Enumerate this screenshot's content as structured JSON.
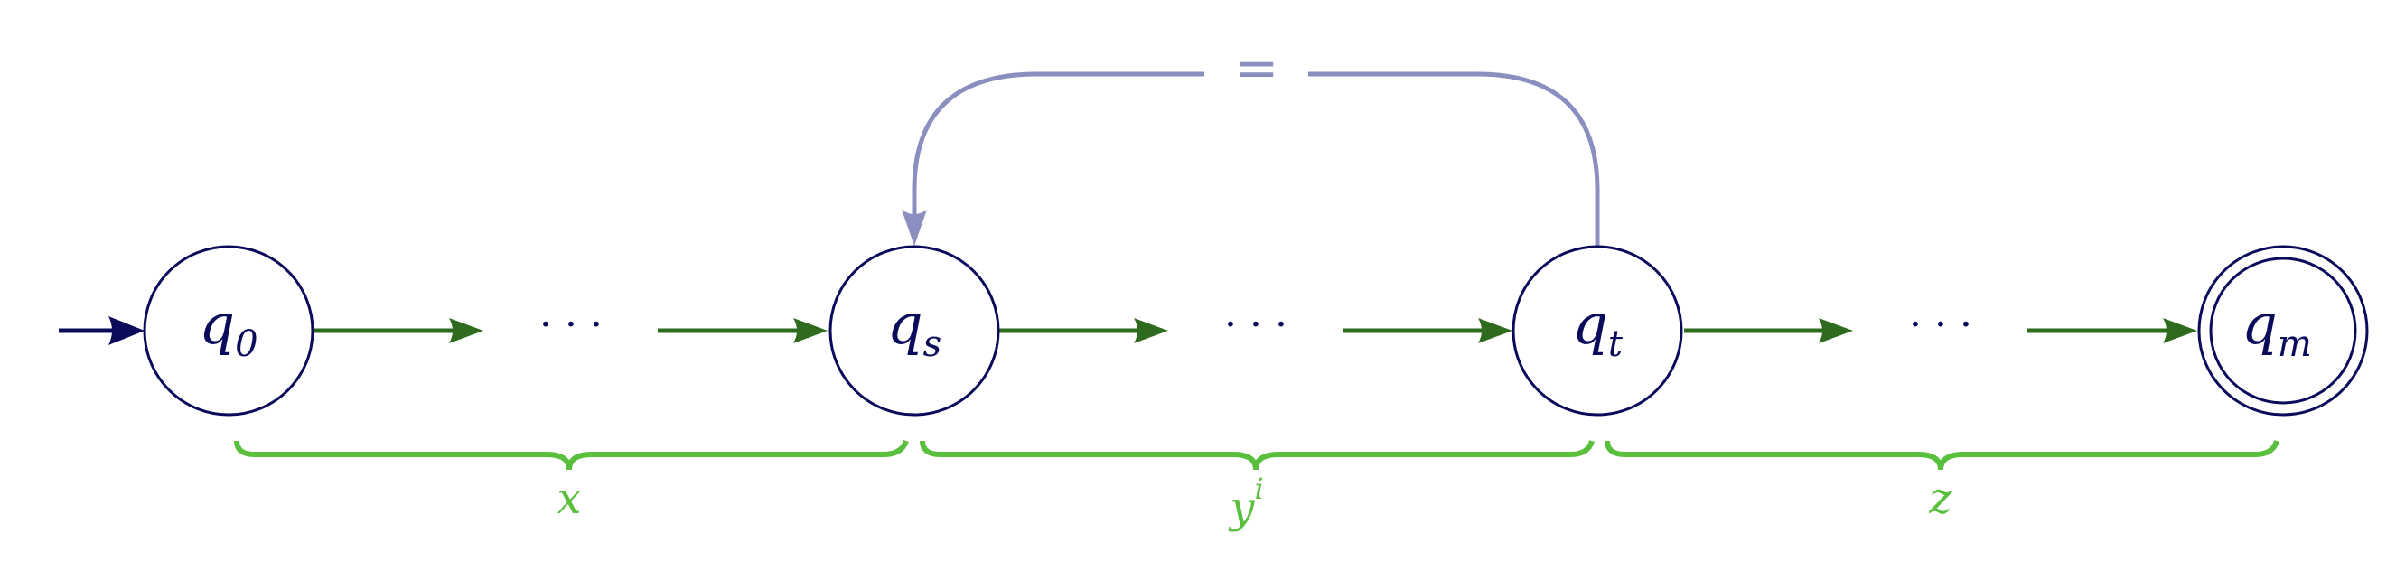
{
  "colors": {
    "state_stroke": "#0b0b5c",
    "transition": "#2e6b1f",
    "brace": "#5bbf3e",
    "loop": "#8a8fbf",
    "initial_arrow": "#0b0b5c"
  },
  "states": [
    {
      "id": "q0",
      "base": "q",
      "sub": "0",
      "accepting": false,
      "initial": true
    },
    {
      "id": "qs",
      "base": "q",
      "sub": "s",
      "accepting": false,
      "initial": false
    },
    {
      "id": "qt",
      "base": "q",
      "sub": "t",
      "accepting": false,
      "initial": false
    },
    {
      "id": "qm",
      "base": "q",
      "sub": "m",
      "accepting": true,
      "initial": false
    }
  ],
  "ellipsis": "· · ·",
  "loop_label": "=",
  "braces": [
    {
      "base": "x",
      "sup": ""
    },
    {
      "base": "y",
      "sup": "i"
    },
    {
      "base": "z",
      "sup": ""
    }
  ]
}
